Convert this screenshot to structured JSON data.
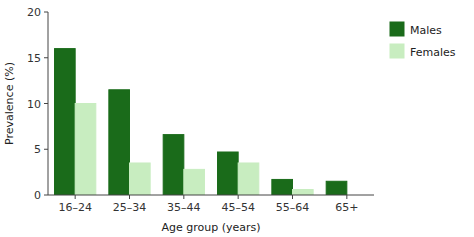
{
  "chart_data": {
    "type": "bar",
    "categories": [
      "16–24",
      "25–34",
      "35–44",
      "45–54",
      "55–64",
      "65+"
    ],
    "series": [
      {
        "name": "Males",
        "color": "#1a6b1a",
        "values": [
          16.0,
          11.5,
          6.6,
          4.7,
          1.7,
          1.5
        ]
      },
      {
        "name": "Females",
        "color": "#c8edc0",
        "values": [
          10.0,
          3.5,
          2.8,
          3.5,
          0.6,
          0.0
        ]
      }
    ],
    "xlabel": "Age group (years)",
    "ylabel": "Prevalence (%)",
    "ylim": [
      0,
      20
    ],
    "yticks": [
      0,
      5,
      10,
      15,
      20
    ],
    "legend": "right",
    "grid": false
  }
}
